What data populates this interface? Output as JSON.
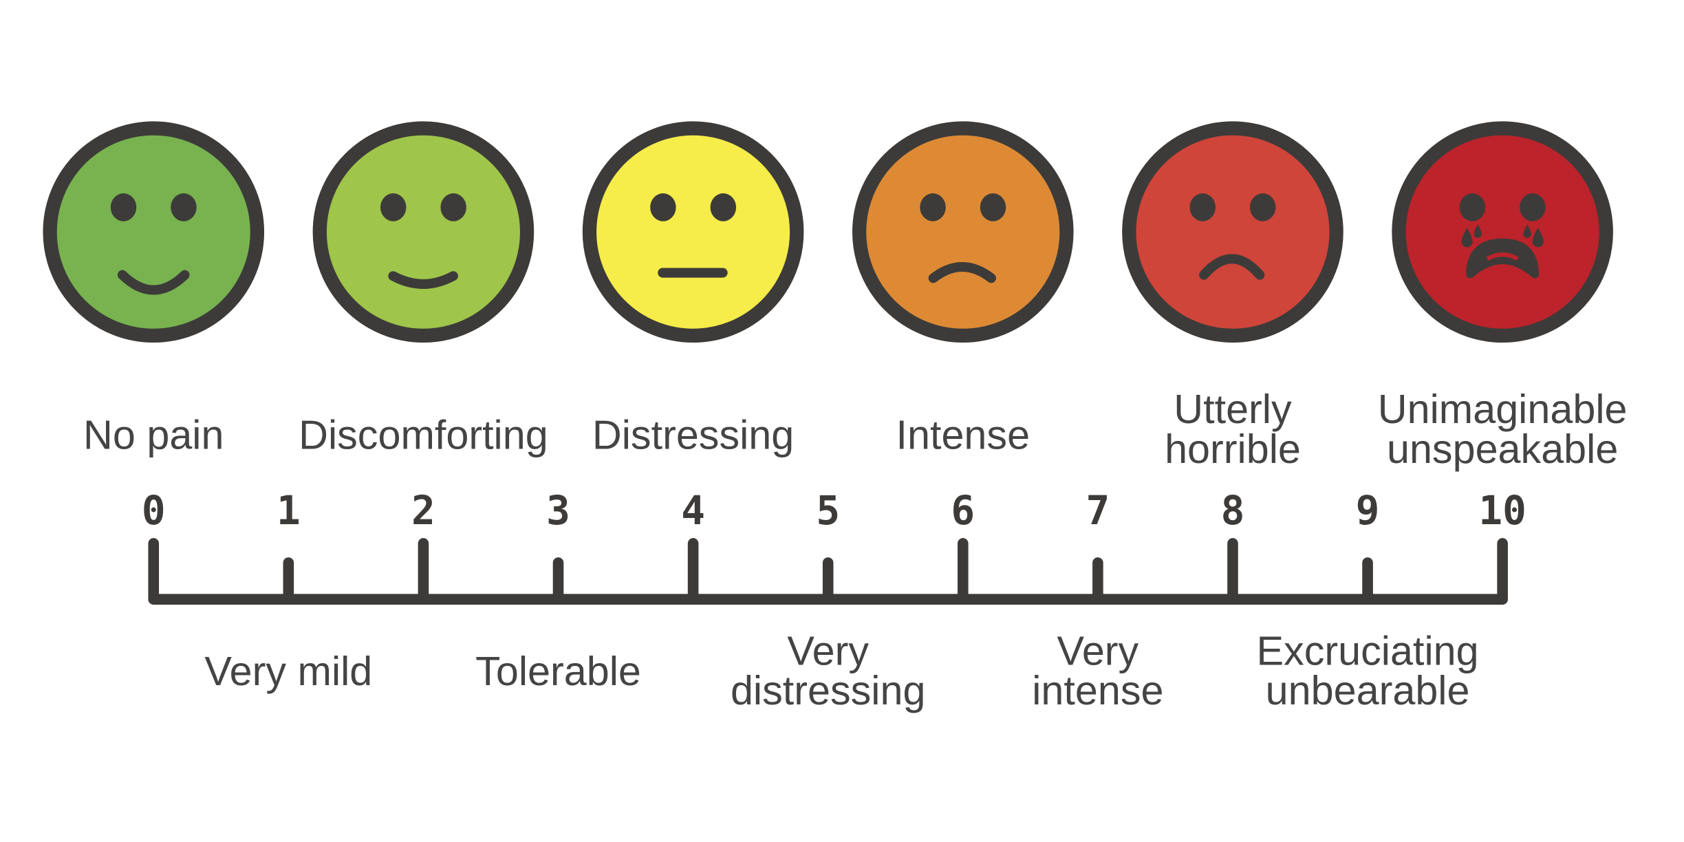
{
  "outline_color": "#3d3b39",
  "text_color": "#444444",
  "faces": [
    {
      "level": 0,
      "color": "#78b34f",
      "expression": "big-smile",
      "label": [
        "No pain"
      ]
    },
    {
      "level": 2,
      "color": "#9fc54a",
      "expression": "smile",
      "label": [
        "Discomforting"
      ]
    },
    {
      "level": 4,
      "color": "#f6ec4a",
      "expression": "neutral",
      "label": [
        "Distressing"
      ]
    },
    {
      "level": 6,
      "color": "#de8a35",
      "expression": "frown",
      "label": [
        "Intense"
      ]
    },
    {
      "level": 8,
      "color": "#cf453a",
      "expression": "sad",
      "label": [
        "Utterly",
        "horrible"
      ]
    },
    {
      "level": 10,
      "color": "#bc232b",
      "expression": "crying",
      "label": [
        "Unimaginable",
        "unspeakable"
      ]
    }
  ],
  "scale": {
    "min": 0,
    "max": 10,
    "ticks": [
      "0",
      "1",
      "2",
      "3",
      "4",
      "5",
      "6",
      "7",
      "8",
      "9",
      "10"
    ]
  },
  "odd_labels": [
    {
      "level": 1,
      "label": [
        "Very mild"
      ]
    },
    {
      "level": 3,
      "label": [
        "Tolerable"
      ]
    },
    {
      "level": 5,
      "label": [
        "Very",
        "distressing"
      ]
    },
    {
      "level": 7,
      "label": [
        "Very",
        "intense"
      ]
    },
    {
      "level": 9,
      "label": [
        "Excruciating",
        "unbearable"
      ]
    }
  ]
}
